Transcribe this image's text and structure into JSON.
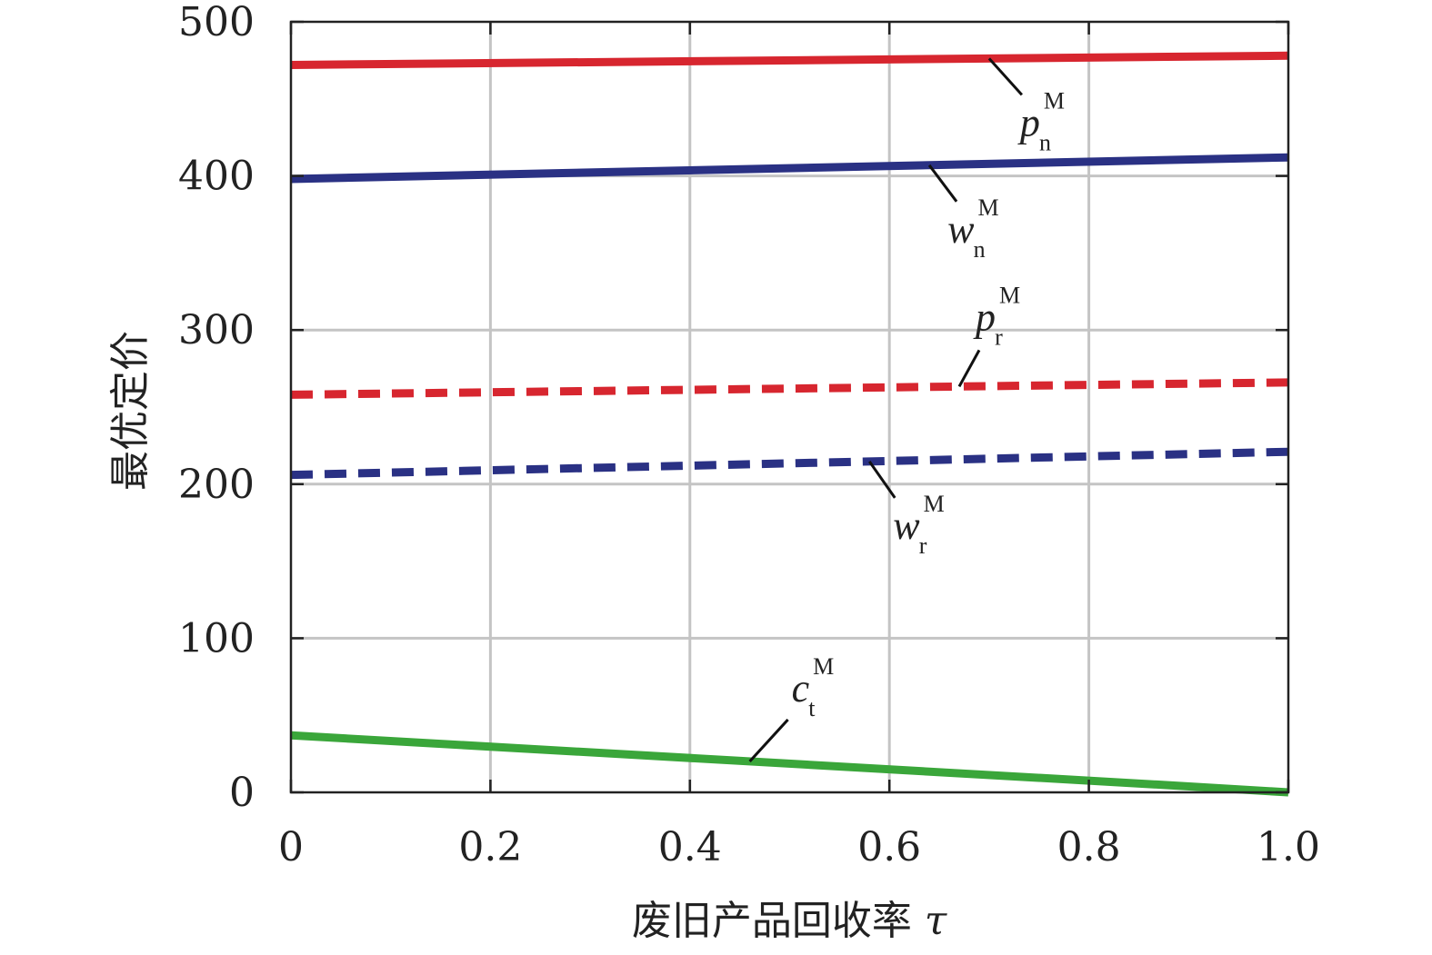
{
  "chart_data": {
    "type": "line",
    "title": "",
    "xlabel": "废旧产品回收率",
    "xlabel_symbol": "τ",
    "ylabel": "最优定价",
    "xlim": [
      0,
      1.0
    ],
    "ylim": [
      0,
      500
    ],
    "xticks": [
      0,
      0.2,
      0.4,
      0.6,
      0.8,
      1.0
    ],
    "xtick_labels": [
      "0",
      "0.2",
      "0.4",
      "0.6",
      "0.8",
      "1.0"
    ],
    "yticks": [
      0,
      100,
      200,
      300,
      400,
      500
    ],
    "ytick_labels": [
      "0",
      "100",
      "200",
      "300",
      "400",
      "500"
    ],
    "grid": true,
    "series": [
      {
        "id": "pn",
        "symbol": "p",
        "sub": "n",
        "sup": "M",
        "color": "#d7262f",
        "dashed": false,
        "x": [
          0,
          1.0
        ],
        "values": [
          472,
          478
        ]
      },
      {
        "id": "wn",
        "symbol": "w",
        "sub": "n",
        "sup": "M",
        "color": "#2a3184",
        "dashed": false,
        "x": [
          0,
          1.0
        ],
        "values": [
          398,
          412
        ]
      },
      {
        "id": "pr",
        "symbol": "p",
        "sub": "r",
        "sup": "M",
        "color": "#d7262f",
        "dashed": true,
        "x": [
          0,
          1.0
        ],
        "values": [
          258,
          266
        ]
      },
      {
        "id": "wr",
        "symbol": "w",
        "sub": "r",
        "sup": "M",
        "color": "#2a3184",
        "dashed": true,
        "x": [
          0,
          1.0
        ],
        "values": [
          206,
          221
        ]
      },
      {
        "id": "ct",
        "symbol": "c",
        "sub": "t",
        "sup": "M",
        "color": "#3aa63a",
        "dashed": false,
        "x": [
          0,
          0.87,
          1.0
        ],
        "values": [
          37,
          5,
          0
        ]
      }
    ],
    "annotations": [
      {
        "series": "pn",
        "at_x": 0.7
      },
      {
        "series": "wn",
        "at_x": 0.64
      },
      {
        "series": "pr",
        "at_x": 0.67
      },
      {
        "series": "wr",
        "at_x": 0.58
      },
      {
        "series": "ct",
        "at_x": 0.46
      }
    ]
  }
}
